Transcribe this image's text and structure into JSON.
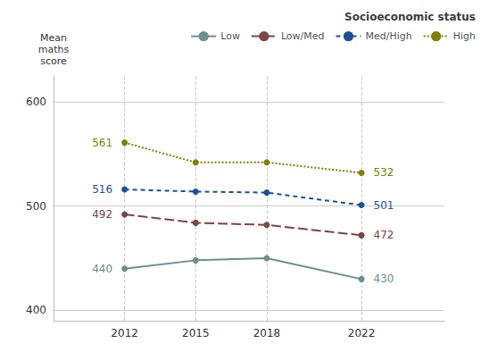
{
  "chart_data": {
    "type": "line",
    "y_label": "Mean\nmaths\nscore",
    "x": [
      2012,
      2015,
      2018,
      2022
    ],
    "series": [
      {
        "name": "Low",
        "color": "#6b8e8e",
        "line_style": "solid",
        "marker": "circle",
        "values": [
          440,
          448,
          450,
          430
        ]
      },
      {
        "name": "Low/Med",
        "color": "#7d4545",
        "line_style": "longdash",
        "marker": "circle",
        "values": [
          492,
          484,
          482,
          472
        ]
      },
      {
        "name": "Med/High",
        "color": "#1f4e9e",
        "line_style": "dashed",
        "marker": "circle",
        "values": [
          516,
          514,
          513,
          501
        ]
      },
      {
        "name": "High",
        "color": "#808000",
        "line_style": "dotted",
        "marker": "circle",
        "values": [
          561,
          542,
          542,
          532
        ]
      }
    ],
    "annotations": [
      {
        "text": "440",
        "x": 2012,
        "y": 440
      },
      {
        "text": "430",
        "x": 2022,
        "y": 430
      },
      {
        "text": "492",
        "x": 2012,
        "y": 492
      },
      {
        "text": "472",
        "x": 2022,
        "y": 472
      },
      {
        "text": "516",
        "x": 2012,
        "y": 516
      },
      {
        "text": "501",
        "x": 2022,
        "y": 501
      },
      {
        "text": "561",
        "x": 2012,
        "y": 561
      },
      {
        "text": "532",
        "x": 2022,
        "y": 532
      }
    ],
    "xlim": [
      2009,
      2025.5
    ],
    "xticks": [
      2012,
      2015,
      2018,
      2022
    ],
    "ylim": [
      390,
      625
    ],
    "yticks": [
      400,
      500,
      600
    ],
    "grid": true,
    "legend": "upper right",
    "legend_title": "Socioeconomic status",
    "background_color": "#ffffff",
    "grid_color": "#cccccc"
  }
}
